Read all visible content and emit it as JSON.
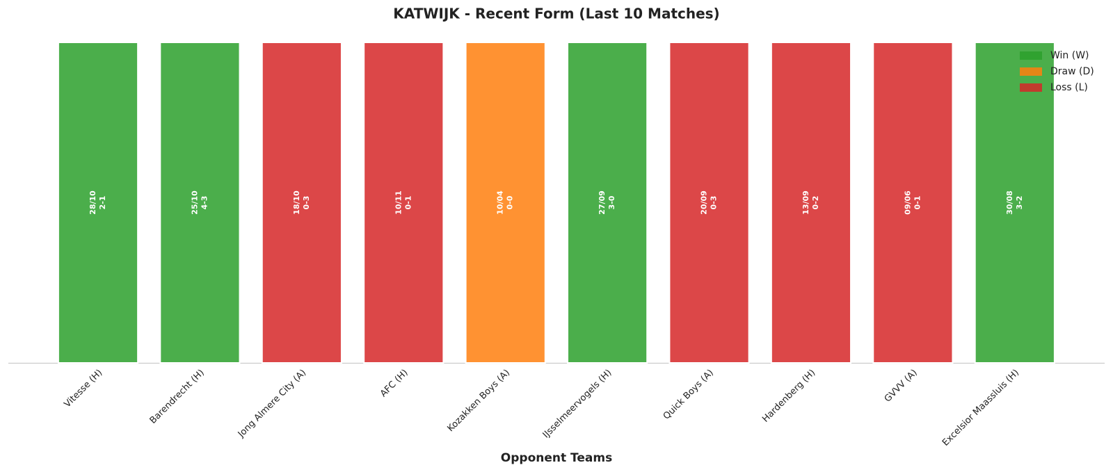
{
  "chart_data": {
    "type": "bar",
    "title": "KATWIJK - Recent Form (Last 10 Matches)",
    "xlabel": "Opponent Teams",
    "categories": [
      "Vitesse (H)",
      "Barendrecht (H)",
      "Jong Almere City (A)",
      "AFC (H)",
      "Kozakken Boys (A)",
      "IJsselmeervogels (H)",
      "Quick Boys (A)",
      "Hardenberg (H)",
      "GVVV (A)",
      "Excelsior Maassluis (H)"
    ],
    "values": [
      1,
      1,
      1,
      1,
      1,
      1,
      1,
      1,
      1,
      1
    ],
    "dates": [
      "28/10",
      "25/10",
      "18/10",
      "10/11",
      "10/04",
      "27/09",
      "20/09",
      "13/09",
      "09/06",
      "30/08"
    ],
    "scores": [
      "2-1",
      "4-3",
      "0-3",
      "0-1",
      "0-0",
      "3-0",
      "0-3",
      "0-2",
      "0-1",
      "3-2"
    ],
    "colors": [
      "#2ca02c",
      "#2ca02c",
      "#d62728",
      "#d62728",
      "#ff7f0e",
      "#2ca02c",
      "#d62728",
      "#d62728",
      "#d62728",
      "#2ca02c"
    ],
    "ylim": [
      0,
      1
    ],
    "legend": [
      {
        "name": "Win (W)",
        "color": "#2ca02c"
      },
      {
        "name": "Draw (D)",
        "color": "#ff7f0e"
      },
      {
        "name": "Loss (L)",
        "color": "#d62728"
      }
    ],
    "legend_loc": "upper right"
  }
}
